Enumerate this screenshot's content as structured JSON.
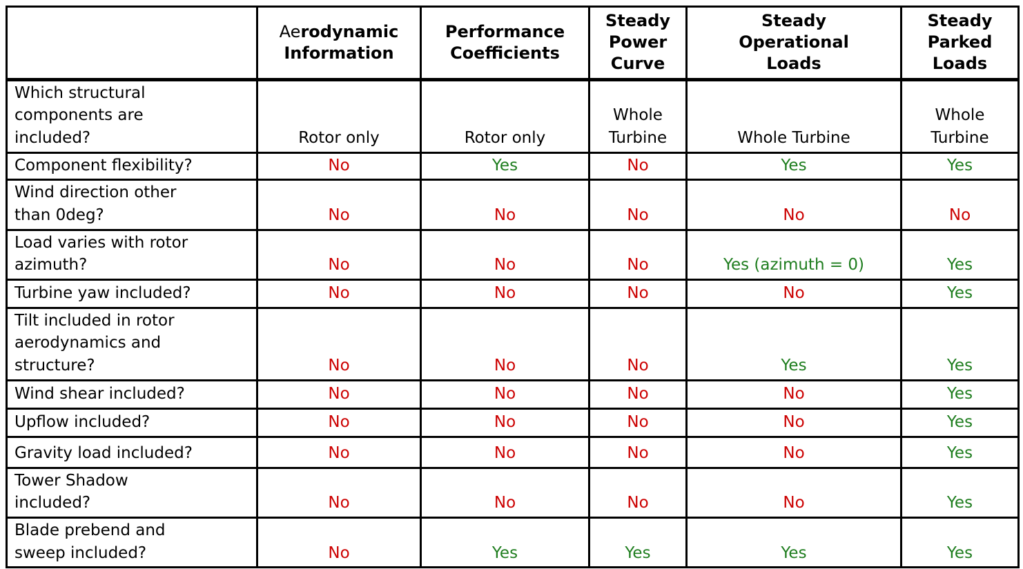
{
  "colors": {
    "yes": "#1E7D1E",
    "no": "#CC0000",
    "border": "#000000",
    "text": "#000000",
    "background": "#FFFFFF"
  },
  "header": {
    "corner": "",
    "columns": [
      {
        "regular": "Ae",
        "bold": "rodynamic\nInformation"
      },
      {
        "bold": "Performance\nCoefficients"
      },
      {
        "bold": "Steady\nPower\nCurve"
      },
      {
        "bold": "Steady\nOperational\nLoads"
      },
      {
        "bold": "Steady\nParked\nLoads"
      }
    ]
  },
  "rows": [
    {
      "label": "Which structural\ncomponents are\nincluded?",
      "cells": [
        "Rotor only",
        "Rotor only",
        "Whole\nTurbine",
        "Whole Turbine",
        "Whole\nTurbine"
      ]
    },
    {
      "label": "Component flexibility?",
      "cells": [
        "No",
        "Yes",
        "No",
        "Yes",
        "Yes"
      ]
    },
    {
      "label": "Wind direction other\nthan 0deg?",
      "cells": [
        "No",
        "No",
        "No",
        "No",
        "No"
      ]
    },
    {
      "label": "Load varies with rotor\nazimuth?",
      "cells": [
        "No",
        "No",
        "No",
        "Yes (azimuth = 0)",
        "Yes"
      ]
    },
    {
      "label": "Turbine yaw included?",
      "cells": [
        "No",
        "No",
        "No",
        "No",
        "Yes"
      ]
    },
    {
      "label": "Tilt included in rotor\naerodynamics and\nstructure?",
      "cells": [
        "No",
        "No",
        "No",
        "Yes",
        "Yes"
      ]
    },
    {
      "label": "Wind shear included?",
      "cells": [
        "No",
        "No",
        "No",
        "No",
        "Yes"
      ]
    },
    {
      "label": "Upflow included?",
      "cells": [
        "No",
        "No",
        "No",
        "No",
        "Yes"
      ]
    },
    {
      "label": "Gravity load included?",
      "cells": [
        "No",
        "No",
        "No",
        "No",
        "Yes"
      ]
    },
    {
      "label": "Tower Shadow\nincluded?",
      "cells": [
        "No",
        "No",
        "No",
        "No",
        "Yes"
      ]
    },
    {
      "label": "Blade prebend and\nsweep included?",
      "cells": [
        "No",
        "Yes",
        "Yes",
        "Yes",
        "Yes"
      ]
    }
  ]
}
